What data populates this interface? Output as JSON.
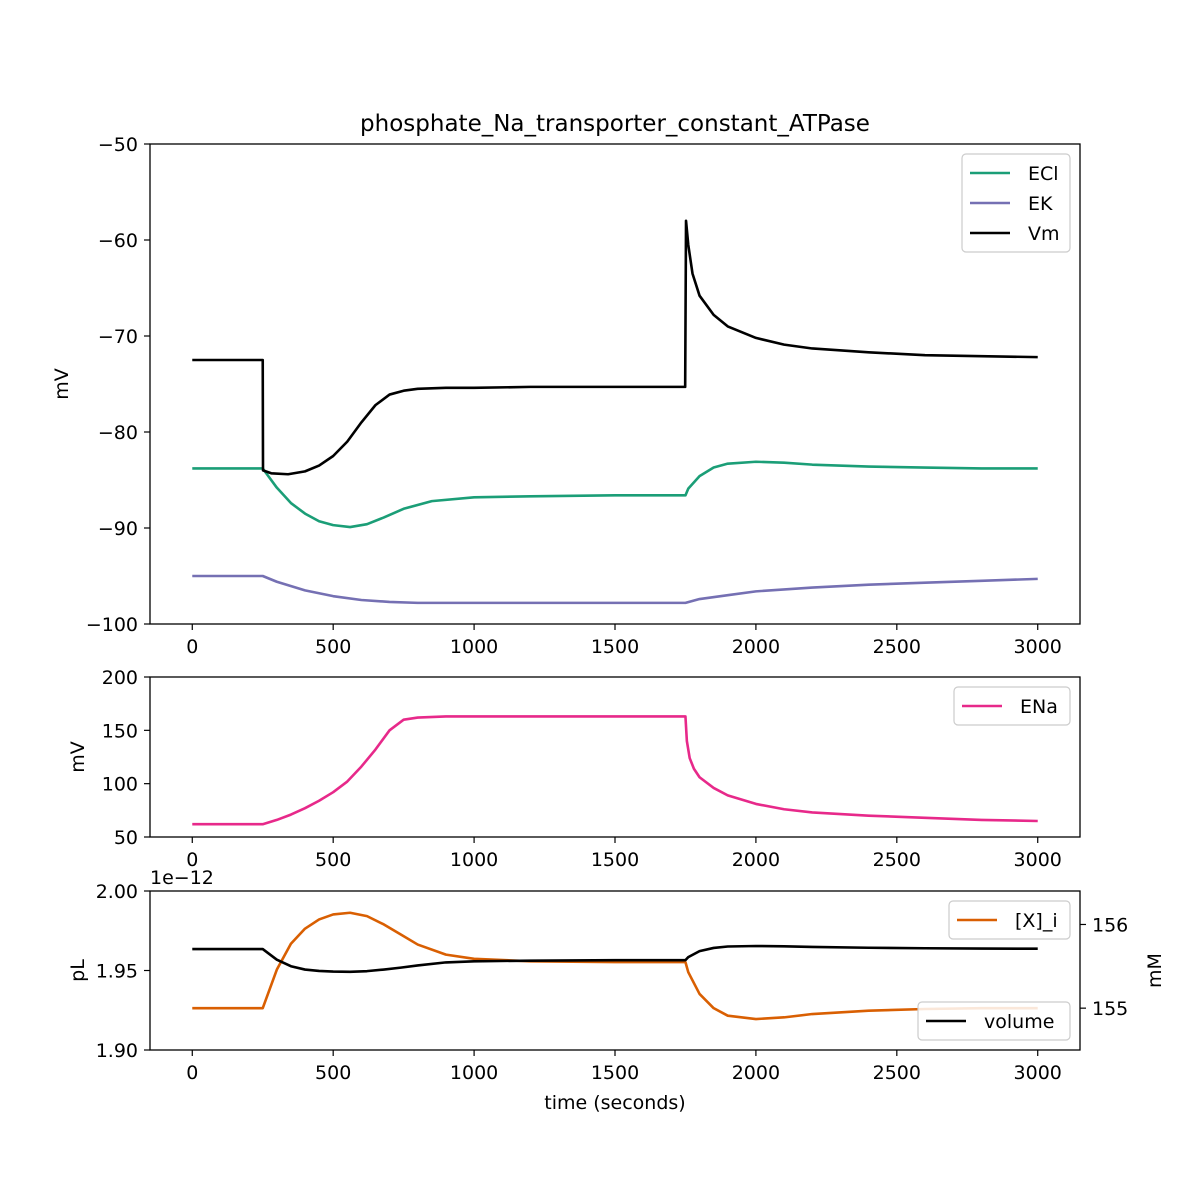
{
  "figure": {
    "title": "phosphate_Na_transporter_constant_ATPase"
  },
  "colors": {
    "ECl": "#1b9e77",
    "EK": "#7570b3",
    "Vm": "#000000",
    "ENa": "#e7298a",
    "X_i": "#d95f02",
    "volume": "#000000"
  },
  "chart_data": [
    {
      "type": "line",
      "title": "phosphate_Na_transporter_constant_ATPase",
      "xlabel": "",
      "ylabel": "mV",
      "xlim": [
        -150,
        3150
      ],
      "ylim": [
        -100,
        -50
      ],
      "xticks": [
        0,
        500,
        1000,
        1500,
        2000,
        2500,
        3000
      ],
      "yticks": [
        -100,
        -90,
        -80,
        -70,
        -60,
        -50
      ],
      "legend_position": "upper right",
      "grid": false,
      "series": [
        {
          "name": "ECl",
          "color": "#1b9e77",
          "x": [
            0,
            250,
            300,
            350,
            400,
            450,
            500,
            560,
            620,
            680,
            750,
            850,
            1000,
            1200,
            1500,
            1750,
            1760,
            1800,
            1850,
            1900,
            2000,
            2100,
            2200,
            2400,
            2600,
            2800,
            3000
          ],
          "y": [
            -83.8,
            -83.8,
            -85.8,
            -87.4,
            -88.5,
            -89.3,
            -89.7,
            -89.9,
            -89.6,
            -88.9,
            -88.0,
            -87.2,
            -86.8,
            -86.7,
            -86.6,
            -86.6,
            -85.9,
            -84.6,
            -83.7,
            -83.3,
            -83.1,
            -83.2,
            -83.4,
            -83.6,
            -83.7,
            -83.8,
            -83.8
          ]
        },
        {
          "name": "EK",
          "color": "#7570b3",
          "x": [
            0,
            250,
            300,
            400,
            500,
            600,
            700,
            800,
            1000,
            1200,
            1500,
            1750,
            1800,
            1900,
            2000,
            2200,
            2400,
            2600,
            2800,
            3000
          ],
          "y": [
            -95.0,
            -95.0,
            -95.6,
            -96.5,
            -97.1,
            -97.5,
            -97.7,
            -97.8,
            -97.8,
            -97.8,
            -97.8,
            -97.8,
            -97.4,
            -97.0,
            -96.6,
            -96.2,
            -95.9,
            -95.7,
            -95.5,
            -95.3
          ]
        },
        {
          "name": "Vm",
          "color": "#000000",
          "x": [
            0,
            250,
            251,
            280,
            340,
            400,
            450,
            500,
            550,
            600,
            650,
            700,
            750,
            800,
            900,
            1000,
            1200,
            1500,
            1749,
            1752,
            1760,
            1775,
            1800,
            1850,
            1900,
            2000,
            2100,
            2200,
            2400,
            2600,
            2800,
            3000
          ],
          "y": [
            -72.5,
            -72.5,
            -84.0,
            -84.3,
            -84.4,
            -84.1,
            -83.5,
            -82.5,
            -81.0,
            -79.0,
            -77.2,
            -76.1,
            -75.7,
            -75.5,
            -75.4,
            -75.4,
            -75.3,
            -75.3,
            -75.3,
            -58.0,
            -60.5,
            -63.5,
            -65.8,
            -67.8,
            -69.0,
            -70.2,
            -70.9,
            -71.3,
            -71.7,
            -72.0,
            -72.1,
            -72.2
          ]
        }
      ]
    },
    {
      "type": "line",
      "title": "",
      "xlabel": "",
      "ylabel": "mV",
      "xlim": [
        -150,
        3150
      ],
      "ylim": [
        50,
        200
      ],
      "xticks": [
        0,
        500,
        1000,
        1500,
        2000,
        2500,
        3000
      ],
      "yticks": [
        50,
        100,
        150,
        200
      ],
      "legend_position": "upper right",
      "grid": false,
      "series": [
        {
          "name": "ENa",
          "color": "#e7298a",
          "x": [
            0,
            250,
            300,
            350,
            400,
            450,
            500,
            550,
            600,
            650,
            700,
            750,
            800,
            900,
            1000,
            1200,
            1500,
            1750,
            1755,
            1765,
            1780,
            1800,
            1850,
            1900,
            2000,
            2100,
            2200,
            2400,
            2600,
            2800,
            3000
          ],
          "y": [
            62,
            62,
            66,
            71,
            77,
            84,
            92,
            102,
            116,
            132,
            150,
            160,
            162,
            163,
            163,
            163,
            163,
            163,
            140,
            124,
            114,
            106,
            96,
            89,
            81,
            76,
            73,
            70,
            68,
            66,
            65
          ]
        }
      ]
    },
    {
      "type": "line",
      "title": "",
      "xlabel": "time (seconds)",
      "ylabel": "pL",
      "ylabel_right": "mM",
      "offset_text": "1e−12",
      "xlim": [
        -150,
        3150
      ],
      "ylim": [
        1.9,
        2.0
      ],
      "ylim_right": [
        154.5,
        156.4
      ],
      "xticks": [
        0,
        500,
        1000,
        1500,
        2000,
        2500,
        3000
      ],
      "yticks": [
        1.9,
        1.95,
        2.0
      ],
      "yticks_labels": [
        "1.90",
        "1.95",
        "2.00"
      ],
      "yticks_right": [
        155,
        156
      ],
      "grid": false,
      "series": [
        {
          "name": "[X]_i",
          "axis": "right",
          "legend_position": "upper right",
          "color": "#d95f02",
          "x": [
            0,
            250,
            300,
            350,
            400,
            450,
            500,
            560,
            620,
            680,
            740,
            800,
            900,
            1000,
            1200,
            1500,
            1750,
            1760,
            1800,
            1850,
            1900,
            2000,
            2100,
            2200,
            2400,
            2600,
            2800,
            3000
          ],
          "y": [
            155.0,
            155.0,
            155.46,
            155.77,
            155.95,
            156.06,
            156.12,
            156.14,
            156.1,
            156.0,
            155.88,
            155.76,
            155.64,
            155.59,
            155.56,
            155.55,
            155.55,
            155.43,
            155.17,
            155.0,
            154.91,
            154.87,
            154.89,
            154.93,
            154.97,
            154.99,
            155.0,
            155.0
          ]
        },
        {
          "name": "volume",
          "axis": "left",
          "legend_position": "lower right",
          "color": "#000000",
          "x": [
            0,
            250,
            300,
            350,
            400,
            450,
            500,
            560,
            620,
            680,
            740,
            800,
            900,
            1000,
            1200,
            1500,
            1750,
            1760,
            1800,
            1850,
            1900,
            2000,
            2100,
            2200,
            2400,
            2600,
            2800,
            3000
          ],
          "y": [
            1.9635,
            1.9635,
            1.9568,
            1.9527,
            1.9506,
            1.9497,
            1.9493,
            1.9492,
            1.9496,
            1.9506,
            1.9518,
            1.9532,
            1.9551,
            1.9558,
            1.9562,
            1.9565,
            1.9565,
            1.9584,
            1.9622,
            1.9642,
            1.9651,
            1.9654,
            1.9652,
            1.9648,
            1.9643,
            1.964,
            1.9638,
            1.9637
          ]
        }
      ]
    }
  ]
}
